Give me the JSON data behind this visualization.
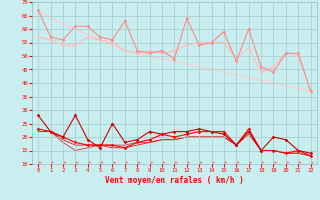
{
  "xlabel": "Vent moyen/en rafales ( km/h )",
  "background_color": "#c8eef0",
  "grid_color": "#a0cccc",
  "ylim": [
    10,
    70
  ],
  "yticks": [
    10,
    15,
    20,
    25,
    30,
    35,
    40,
    45,
    50,
    55,
    60,
    65,
    70
  ],
  "line_upper1": [
    67,
    57,
    56,
    61,
    61,
    57,
    56,
    63,
    52,
    51,
    52,
    49,
    64,
    54,
    55,
    59,
    48,
    60,
    46,
    44,
    51,
    51,
    37
  ],
  "line_upper2": [
    57,
    56,
    54,
    54,
    57,
    56,
    55,
    52,
    51,
    52,
    51,
    52,
    54,
    55,
    55,
    55,
    49,
    53,
    44,
    46,
    51,
    50,
    37
  ],
  "line_trend": [
    67,
    64,
    62,
    60,
    58,
    56,
    54,
    52,
    51,
    50,
    49,
    48,
    47,
    46,
    45,
    44,
    43,
    42,
    41,
    40,
    39,
    38,
    37
  ],
  "line_lower1": [
    28,
    22,
    20,
    28,
    19,
    16,
    25,
    18,
    19,
    22,
    21,
    22,
    22,
    23,
    22,
    21,
    17,
    22,
    15,
    20,
    19,
    15,
    14
  ],
  "line_lower2": [
    23,
    22,
    20,
    18,
    17,
    17,
    17,
    16,
    18,
    19,
    21,
    20,
    21,
    22,
    22,
    22,
    17,
    23,
    15,
    15,
    14,
    15,
    13
  ],
  "line_lower3": [
    22,
    22,
    19,
    17,
    17,
    17,
    16,
    16,
    17,
    18,
    19,
    19,
    20,
    20,
    20,
    20,
    17,
    21,
    15,
    15,
    14,
    14,
    13
  ],
  "line_lower4": [
    22,
    22,
    18,
    15,
    16,
    17,
    17,
    17,
    18,
    18,
    19,
    19,
    20,
    20,
    20,
    20,
    17,
    22,
    15,
    15,
    14,
    14,
    13
  ],
  "color_pink_dark": "#ff8888",
  "color_pink_light": "#ffbbbb",
  "color_trend": "#ffcccc",
  "color_dark_red": "#cc0000",
  "color_red": "#ff0000",
  "color_red2": "#ee1111",
  "color_red3": "#dd3333",
  "arrow_color": "#ff7777"
}
